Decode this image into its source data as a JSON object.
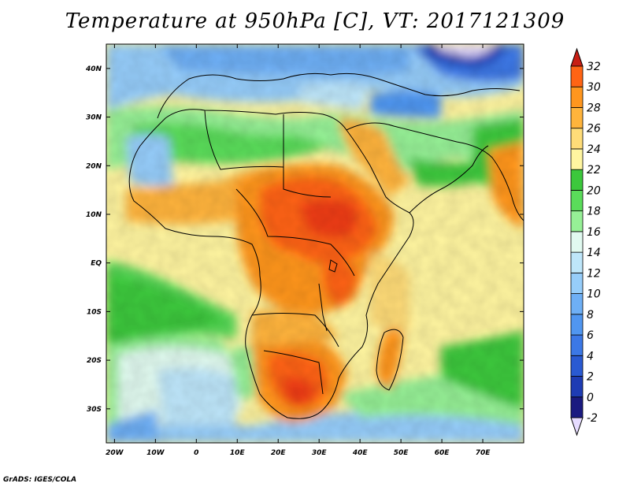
{
  "title": "Temperature at 950hPa [C], VT: 2017121309",
  "footer": "GrADS: IGES/COLA",
  "map": {
    "lon_range": [
      -22,
      80
    ],
    "lat_range": [
      -37,
      45
    ],
    "lat_ticks": [
      {
        "value": 40,
        "label": "40N"
      },
      {
        "value": 30,
        "label": "30N"
      },
      {
        "value": 20,
        "label": "20N"
      },
      {
        "value": 10,
        "label": "10N"
      },
      {
        "value": 0,
        "label": "EQ"
      },
      {
        "value": -10,
        "label": "10S"
      },
      {
        "value": -20,
        "label": "20S"
      },
      {
        "value": -30,
        "label": "30S"
      }
    ],
    "lon_ticks": [
      {
        "value": -20,
        "label": "20W"
      },
      {
        "value": -10,
        "label": "10W"
      },
      {
        "value": 0,
        "label": "0"
      },
      {
        "value": 10,
        "label": "10E"
      },
      {
        "value": 20,
        "label": "20E"
      },
      {
        "value": 30,
        "label": "30E"
      },
      {
        "value": 40,
        "label": "40E"
      },
      {
        "value": 50,
        "label": "50E"
      },
      {
        "value": 60,
        "label": "60E"
      },
      {
        "value": 70,
        "label": "70E"
      }
    ]
  },
  "colorbar": {
    "levels": [
      {
        "value": -2,
        "label": "-2",
        "color": "#1a1a80"
      },
      {
        "value": 0,
        "label": "0",
        "color": "#1e3cb4"
      },
      {
        "value": 2,
        "label": "2",
        "color": "#2a5ad2"
      },
      {
        "value": 4,
        "label": "4",
        "color": "#3c78e6"
      },
      {
        "value": 6,
        "label": "6",
        "color": "#5096f0"
      },
      {
        "value": 8,
        "label": "8",
        "color": "#6eaff5"
      },
      {
        "value": 10,
        "label": "10",
        "color": "#96cdfa"
      },
      {
        "value": 12,
        "label": "12",
        "color": "#bee6fa"
      },
      {
        "value": 14,
        "label": "14",
        "color": "#e1faf0"
      },
      {
        "value": 16,
        "label": "16",
        "color": "#96f096"
      },
      {
        "value": 18,
        "label": "18",
        "color": "#5adc5a"
      },
      {
        "value": 20,
        "label": "20",
        "color": "#3cc83c"
      },
      {
        "value": 22,
        "label": "22",
        "color": "#fff5a0"
      },
      {
        "value": 24,
        "label": "24",
        "color": "#ffdc78"
      },
      {
        "value": 26,
        "label": "26",
        "color": "#ffb43c"
      },
      {
        "value": 28,
        "label": "28",
        "color": "#ff961e"
      },
      {
        "value": 30,
        "label": "30",
        "color": "#ff6414"
      },
      {
        "value": 32,
        "label": "32",
        "color": "#f03c14"
      }
    ],
    "under_color": "#e6dcff",
    "over_color": "#c81e14"
  }
}
